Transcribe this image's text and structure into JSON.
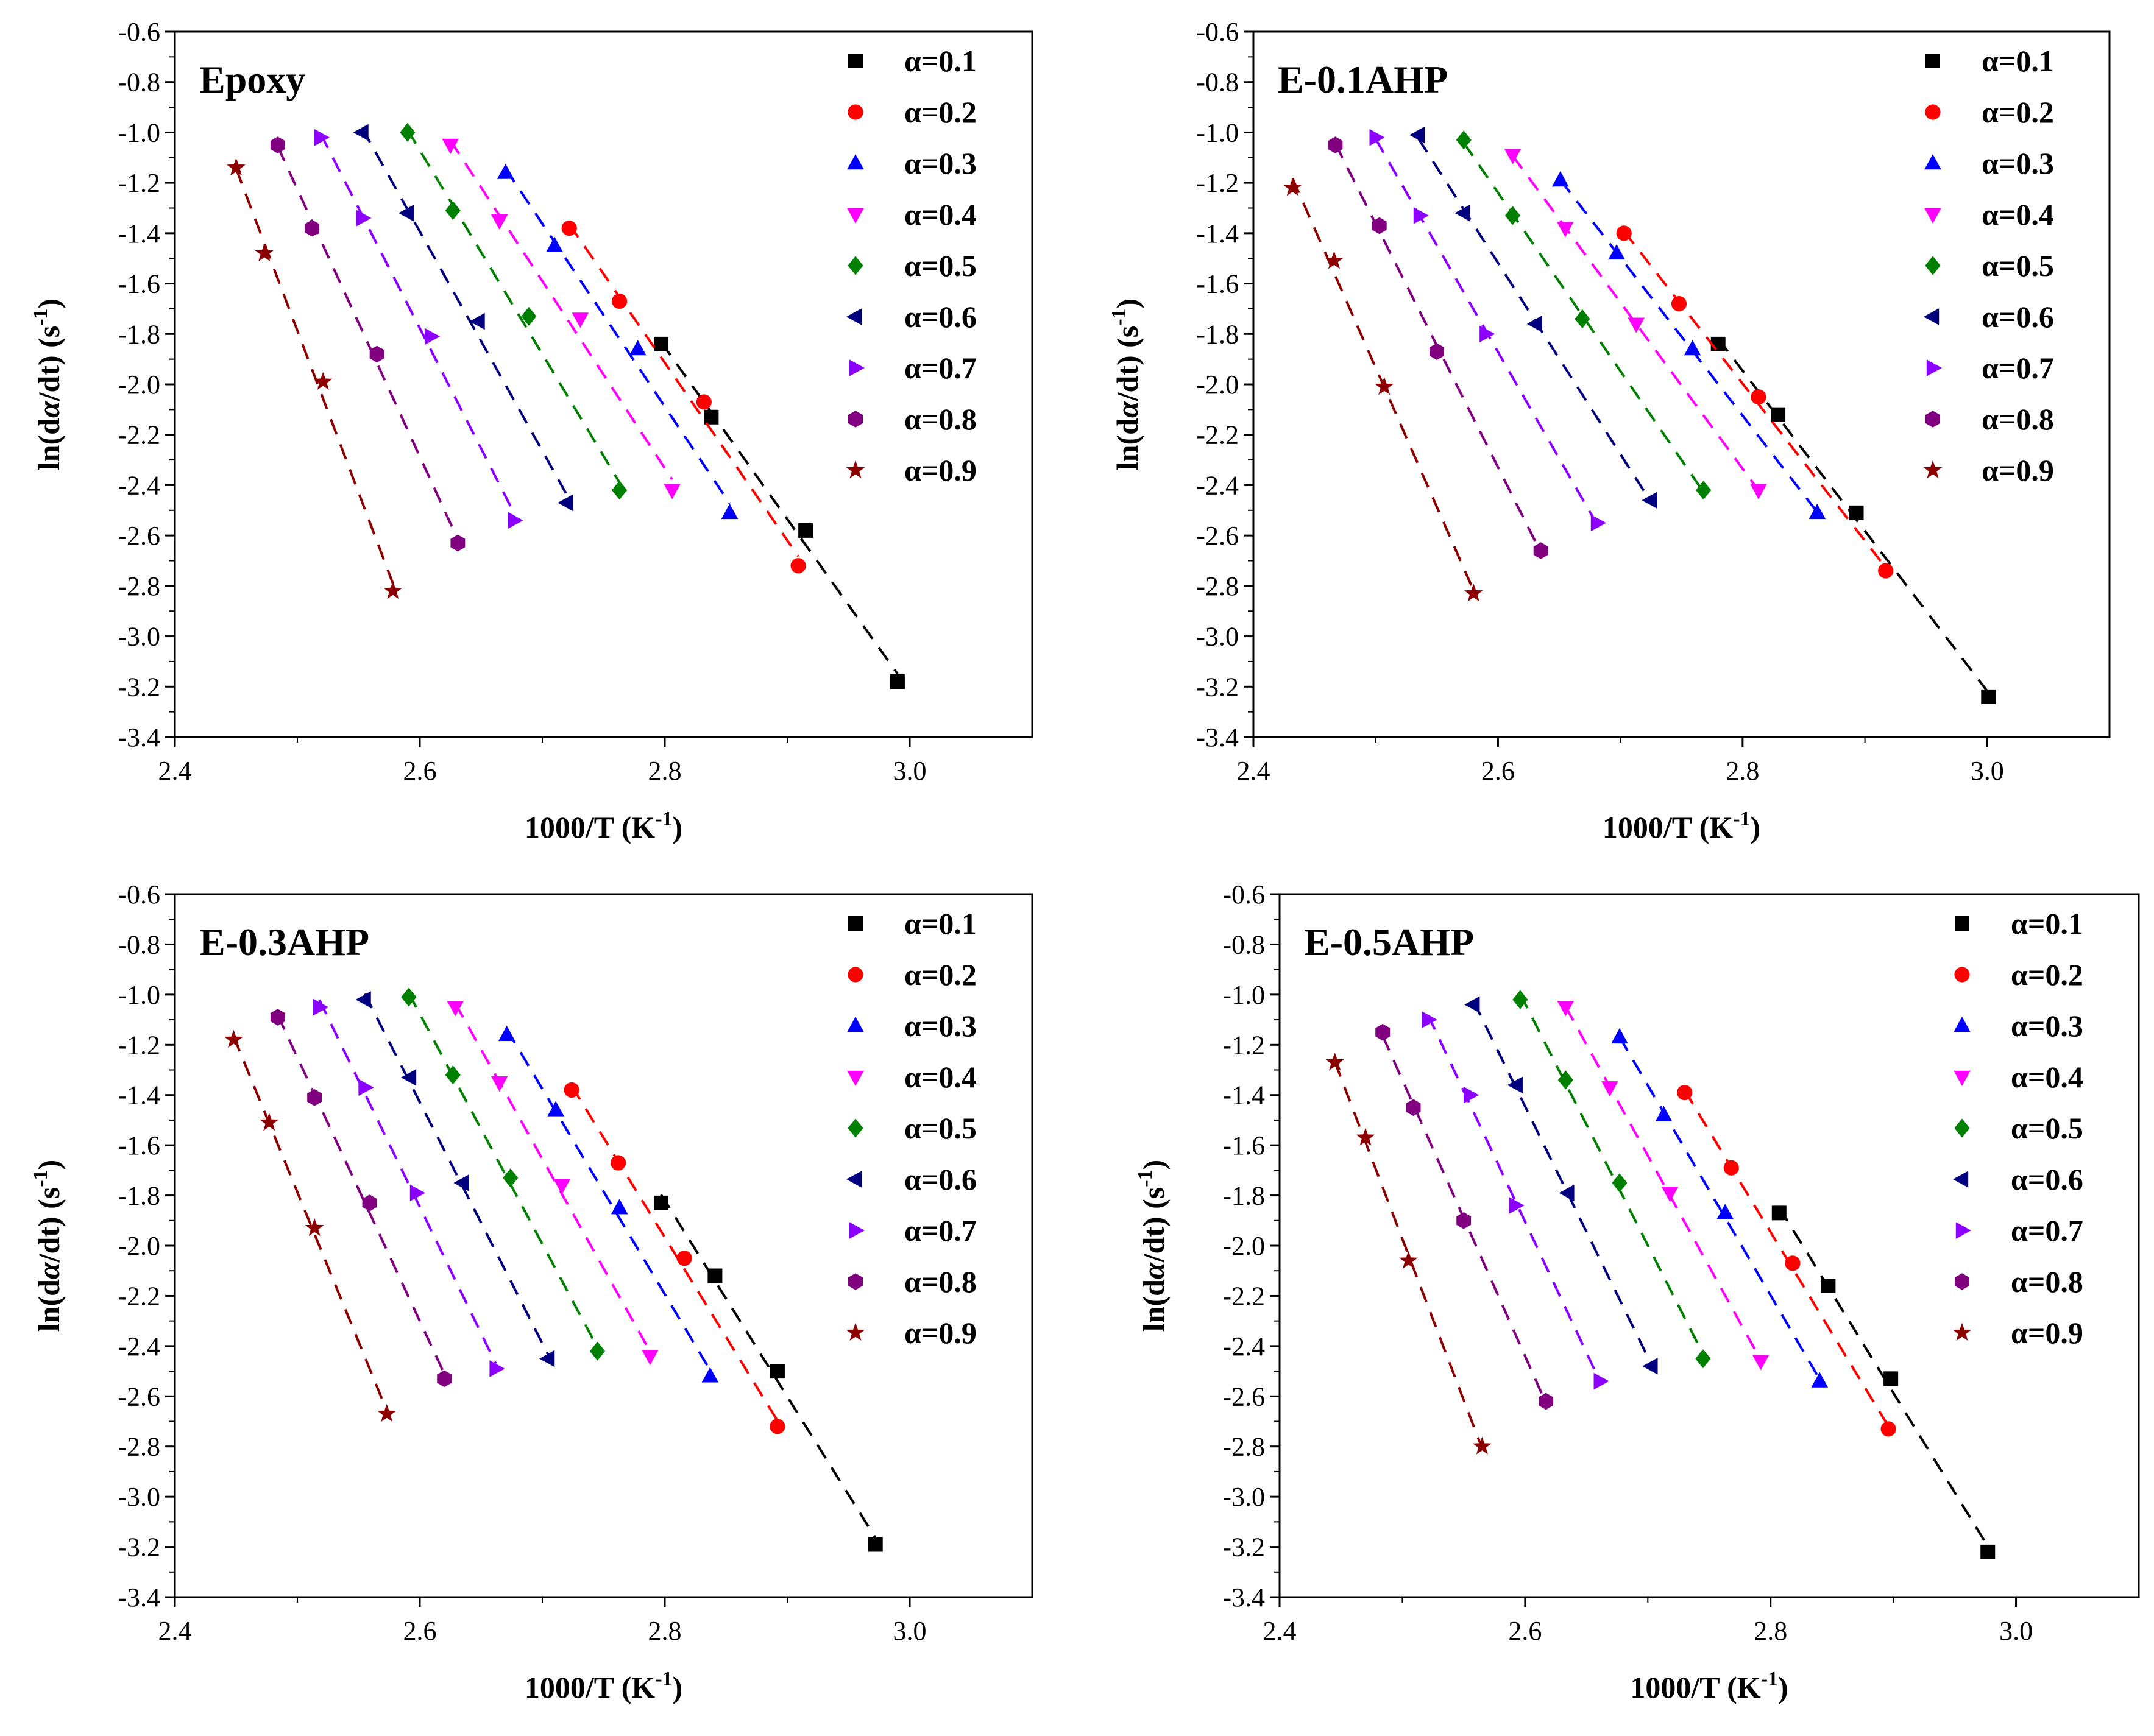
{
  "colors": {
    "0.1": "#000000",
    "0.2": "#ff0000",
    "0.3": "#0000ff",
    "0.4": "#ff00ff",
    "0.5": "#008000",
    "0.6": "#00007f",
    "0.7": "#8b00ff",
    "0.8": "#800080",
    "0.9": "#8b0000"
  },
  "markers": {
    "0.1": "square",
    "0.2": "circle",
    "0.3": "triangle-up",
    "0.4": "triangle-down",
    "0.5": "diamond",
    "0.6": "triangle-left",
    "0.7": "triangle-right",
    "0.8": "hexagon",
    "0.9": "star"
  },
  "chart_data": [
    {
      "type": "scatter",
      "title": "Epoxy",
      "xlabel": "1000/T (K-1)",
      "ylabel": "ln(dα/dt) (s-1)",
      "xlim": [
        2.4,
        3.1
      ],
      "ylim": [
        -3.4,
        -0.6
      ],
      "xticks": [
        "2.4",
        "2.6",
        "2.8",
        "3.0"
      ],
      "yticks": [
        "-3.4",
        "-3.2",
        "-3.0",
        "-2.8",
        "-2.6",
        "-2.4",
        "-2.2",
        "-2.0",
        "-1.8",
        "-1.6",
        "-1.4",
        "-1.2",
        "-1.0",
        "-0.8",
        "-0.6"
      ],
      "legend_position": "top-right",
      "fit_lines": "dashed",
      "series": [
        {
          "name": "α=0.1",
          "key": "0.1",
          "x": [
            2.797,
            2.838,
            2.915,
            2.99
          ],
          "y": [
            -1.84,
            -2.13,
            -2.58,
            -3.18
          ]
        },
        {
          "name": "α=0.2",
          "key": "0.2",
          "x": [
            2.722,
            2.763,
            2.832,
            2.909
          ],
          "y": [
            -1.38,
            -1.67,
            -2.07,
            -2.72
          ]
        },
        {
          "name": "α=0.3",
          "key": "0.3",
          "x": [
            2.67,
            2.71,
            2.778,
            2.853
          ],
          "y": [
            -1.16,
            -1.45,
            -1.86,
            -2.51
          ]
        },
        {
          "name": "α=0.4",
          "key": "0.4",
          "x": [
            2.625,
            2.665,
            2.731,
            2.806
          ],
          "y": [
            -1.05,
            -1.35,
            -1.74,
            -2.42
          ]
        },
        {
          "name": "α=0.5",
          "key": "0.5",
          "x": [
            2.59,
            2.627,
            2.689,
            2.763
          ],
          "y": [
            -1.0,
            -1.31,
            -1.73,
            -2.42
          ]
        },
        {
          "name": "α=0.6",
          "key": "0.6",
          "x": [
            2.553,
            2.59,
            2.648,
            2.72
          ],
          "y": [
            -1.0,
            -1.32,
            -1.75,
            -2.47
          ]
        },
        {
          "name": "α=0.7",
          "key": "0.7",
          "x": [
            2.519,
            2.553,
            2.609,
            2.677
          ],
          "y": [
            -1.02,
            -1.34,
            -1.81,
            -2.54
          ]
        },
        {
          "name": "α=0.8",
          "key": "0.8",
          "x": [
            2.484,
            2.512,
            2.565,
            2.631
          ],
          "y": [
            -1.05,
            -1.38,
            -1.88,
            -2.63
          ]
        },
        {
          "name": "α=0.9",
          "key": "0.9",
          "x": [
            2.45,
            2.473,
            2.521,
            2.578
          ],
          "y": [
            -1.14,
            -1.48,
            -1.99,
            -2.82
          ]
        }
      ]
    },
    {
      "type": "scatter",
      "title": "E-0.1AHP",
      "xlabel": "1000/T (K-1)",
      "ylabel": "ln(dα/dt) (s-1)",
      "xlim": [
        2.4,
        3.1
      ],
      "ylim": [
        -3.4,
        -0.6
      ],
      "xticks": [
        "2.4",
        "2.6",
        "2.8",
        "3.0"
      ],
      "yticks": [
        "-3.4",
        "-3.2",
        "-3.0",
        "-2.8",
        "-2.6",
        "-2.4",
        "-2.2",
        "-2.0",
        "-1.8",
        "-1.6",
        "-1.4",
        "-1.2",
        "-1.0",
        "-0.8",
        "-0.6"
      ],
      "legend_position": "top-right",
      "fit_lines": "dashed",
      "series": [
        {
          "name": "α=0.1",
          "key": "0.1",
          "x": [
            2.78,
            2.829,
            2.893,
            3.001
          ],
          "y": [
            -1.84,
            -2.12,
            -2.51,
            -3.24
          ]
        },
        {
          "name": "α=0.2",
          "key": "0.2",
          "x": [
            2.703,
            2.748,
            2.813,
            2.917
          ],
          "y": [
            -1.4,
            -1.68,
            -2.05,
            -2.74
          ]
        },
        {
          "name": "α=0.3",
          "key": "0.3",
          "x": [
            2.651,
            2.697,
            2.759,
            2.861
          ],
          "y": [
            -1.19,
            -1.48,
            -1.86,
            -2.51
          ]
        },
        {
          "name": "α=0.4",
          "key": "0.4",
          "x": [
            2.612,
            2.655,
            2.713,
            2.813
          ],
          "y": [
            -1.09,
            -1.38,
            -1.76,
            -2.42
          ]
        },
        {
          "name": "α=0.5",
          "key": "0.5",
          "x": [
            2.572,
            2.612,
            2.669,
            2.768
          ],
          "y": [
            -1.03,
            -1.33,
            -1.74,
            -2.42
          ]
        },
        {
          "name": "α=0.6",
          "key": "0.6",
          "x": [
            2.535,
            2.572,
            2.631,
            2.725
          ],
          "y": [
            -1.01,
            -1.32,
            -1.76,
            -2.46
          ]
        },
        {
          "name": "α=0.7",
          "key": "0.7",
          "x": [
            2.5,
            2.536,
            2.59,
            2.681
          ],
          "y": [
            -1.02,
            -1.33,
            -1.8,
            -2.55
          ]
        },
        {
          "name": "α=0.8",
          "key": "0.8",
          "x": [
            2.467,
            2.503,
            2.55,
            2.635
          ],
          "y": [
            -1.05,
            -1.37,
            -1.87,
            -2.66
          ]
        },
        {
          "name": "α=0.9",
          "key": "0.9",
          "x": [
            2.432,
            2.466,
            2.507,
            2.58
          ],
          "y": [
            -1.22,
            -1.51,
            -2.01,
            -2.83
          ]
        }
      ]
    },
    {
      "type": "scatter",
      "title": "E-0.3AHP",
      "xlabel": "1000/T (K-1)",
      "ylabel": "ln(dα/dt) (s-1)",
      "xlim": [
        2.4,
        3.1
      ],
      "ylim": [
        -3.4,
        -0.6
      ],
      "xticks": [
        "2.4",
        "2.6",
        "2.8",
        "3.0"
      ],
      "yticks": [
        "-3.4",
        "-3.2",
        "-3.0",
        "-2.8",
        "-2.6",
        "-2.4",
        "-2.2",
        "-2.0",
        "-1.8",
        "-1.6",
        "-1.4",
        "-1.2",
        "-1.0",
        "-0.8",
        "-0.6"
      ],
      "legend_position": "top-right",
      "fit_lines": "dashed",
      "series": [
        {
          "name": "α=0.1",
          "key": "0.1",
          "x": [
            2.797,
            2.841,
            2.892,
            2.972
          ],
          "y": [
            -1.83,
            -2.12,
            -2.5,
            -3.19
          ]
        },
        {
          "name": "α=0.2",
          "key": "0.2",
          "x": [
            2.724,
            2.762,
            2.816,
            2.892
          ],
          "y": [
            -1.38,
            -1.67,
            -2.05,
            -2.72
          ]
        },
        {
          "name": "α=0.3",
          "key": "0.3",
          "x": [
            2.671,
            2.711,
            2.763,
            2.837
          ],
          "y": [
            -1.16,
            -1.46,
            -1.85,
            -2.52
          ]
        },
        {
          "name": "α=0.4",
          "key": "0.4",
          "x": [
            2.629,
            2.665,
            2.716,
            2.788
          ],
          "y": [
            -1.05,
            -1.35,
            -1.76,
            -2.44
          ]
        },
        {
          "name": "α=0.5",
          "key": "0.5",
          "x": [
            2.591,
            2.627,
            2.674,
            2.745
          ],
          "y": [
            -1.01,
            -1.32,
            -1.73,
            -2.42
          ]
        },
        {
          "name": "α=0.6",
          "key": "0.6",
          "x": [
            2.555,
            2.592,
            2.635,
            2.705
          ],
          "y": [
            -1.02,
            -1.33,
            -1.75,
            -2.45
          ]
        },
        {
          "name": "α=0.7",
          "key": "0.7",
          "x": [
            2.518,
            2.555,
            2.597,
            2.662
          ],
          "y": [
            -1.05,
            -1.37,
            -1.79,
            -2.49
          ]
        },
        {
          "name": "α=0.8",
          "key": "0.8",
          "x": [
            2.484,
            2.514,
            2.559,
            2.62
          ],
          "y": [
            -1.09,
            -1.41,
            -1.83,
            -2.53
          ]
        },
        {
          "name": "α=0.9",
          "key": "0.9",
          "x": [
            2.448,
            2.477,
            2.514,
            2.573
          ],
          "y": [
            -1.18,
            -1.51,
            -1.93,
            -2.67
          ]
        }
      ]
    },
    {
      "type": "scatter",
      "title": "E-0.5AHP",
      "xlabel": "1000/T (K-1)",
      "ylabel": "ln(dα/dt) (s-1)",
      "xlim": [
        2.4,
        3.1
      ],
      "ylim": [
        -3.4,
        -0.6
      ],
      "xticks": [
        "2.4",
        "2.6",
        "2.8",
        "3.0"
      ],
      "yticks": [
        "-3.4",
        "-3.2",
        "-3.0",
        "-2.8",
        "-2.6",
        "-2.4",
        "-2.2",
        "-2.0",
        "-1.8",
        "-1.6",
        "-1.4",
        "-1.2",
        "-1.0",
        "-0.8",
        "-0.6"
      ],
      "legend_position": "top-right",
      "fit_lines": "dashed",
      "series": [
        {
          "name": "α=0.1",
          "key": "0.1",
          "x": [
            2.807,
            2.847,
            2.898,
            2.977
          ],
          "y": [
            -1.87,
            -2.16,
            -2.53,
            -3.22
          ]
        },
        {
          "name": "α=0.2",
          "key": "0.2",
          "x": [
            2.73,
            2.768,
            2.818,
            2.896
          ],
          "y": [
            -1.39,
            -1.69,
            -2.07,
            -2.73
          ]
        },
        {
          "name": "α=0.3",
          "key": "0.3",
          "x": [
            2.677,
            2.713,
            2.763,
            2.84
          ],
          "y": [
            -1.17,
            -1.48,
            -1.87,
            -2.54
          ]
        },
        {
          "name": "α=0.4",
          "key": "0.4",
          "x": [
            2.633,
            2.669,
            2.718,
            2.792
          ],
          "y": [
            -1.05,
            -1.37,
            -1.79,
            -2.46
          ]
        },
        {
          "name": "α=0.5",
          "key": "0.5",
          "x": [
            2.596,
            2.633,
            2.677,
            2.745
          ],
          "y": [
            -1.02,
            -1.34,
            -1.75,
            -2.45
          ]
        },
        {
          "name": "α=0.6",
          "key": "0.6",
          "x": [
            2.558,
            2.593,
            2.635,
            2.703
          ],
          "y": [
            -1.04,
            -1.36,
            -1.79,
            -2.48
          ]
        },
        {
          "name": "α=0.7",
          "key": "0.7",
          "x": [
            2.521,
            2.555,
            2.592,
            2.661
          ],
          "y": [
            -1.1,
            -1.4,
            -1.84,
            -2.54
          ]
        },
        {
          "name": "α=0.8",
          "key": "0.8",
          "x": [
            2.484,
            2.509,
            2.55,
            2.617
          ],
          "y": [
            -1.15,
            -1.45,
            -1.9,
            -2.62
          ]
        },
        {
          "name": "α=0.9",
          "key": "0.9",
          "x": [
            2.445,
            2.47,
            2.505,
            2.565
          ],
          "y": [
            -1.27,
            -1.57,
            -2.06,
            -2.8
          ]
        }
      ]
    }
  ]
}
